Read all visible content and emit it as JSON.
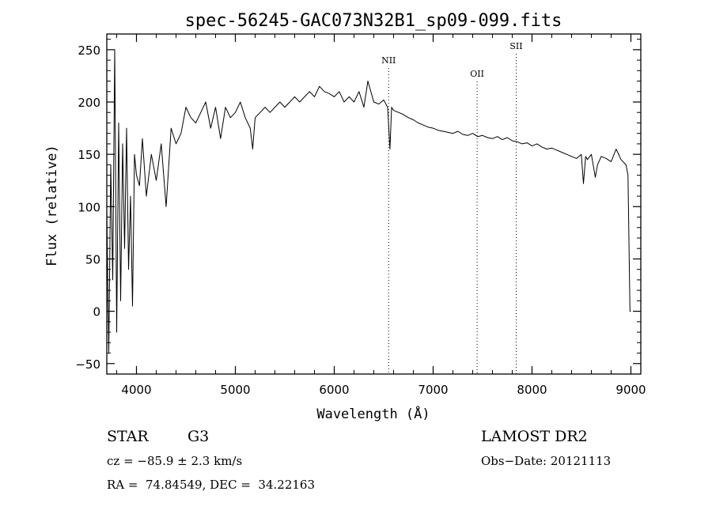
{
  "chart_data": {
    "type": "line",
    "title": "spec-56245-GAC073N32B1_sp09-099.fits",
    "xlabel": "Wavelength (Å)",
    "ylabel": "Flux (relative)",
    "xlim": [
      3700,
      9100
    ],
    "ylim": [
      -60,
      265
    ],
    "x_ticks": [
      4000,
      5000,
      6000,
      7000,
      8000,
      9000
    ],
    "y_ticks": [
      -50,
      0,
      50,
      100,
      150,
      200,
      250
    ],
    "grid": false,
    "lines": [
      {
        "label": "NII",
        "x": 6550
      },
      {
        "label": "OII",
        "x": 7445
      },
      {
        "label": "SII",
        "x": 7840
      }
    ],
    "series": [
      {
        "x": [
          3700,
          3720,
          3740,
          3760,
          3780,
          3800,
          3820,
          3840,
          3860,
          3880,
          3900,
          3920,
          3940,
          3960,
          3980,
          4000,
          4030,
          4060,
          4100,
          4150,
          4200,
          4250,
          4300,
          4350,
          4400,
          4450,
          4500,
          4550,
          4600,
          4650,
          4700,
          4750,
          4800,
          4850,
          4900,
          4950,
          5000,
          5050,
          5100,
          5150,
          5175,
          5200,
          5250,
          5300,
          5350,
          5400,
          5450,
          5500,
          5550,
          5600,
          5650,
          5700,
          5750,
          5800,
          5850,
          5900,
          5950,
          6000,
          6050,
          6100,
          6150,
          6200,
          6250,
          6300,
          6340,
          6400,
          6450,
          6500,
          6540,
          6563,
          6580,
          6600,
          6650,
          6700,
          6750,
          6800,
          6850,
          6900,
          6950,
          7000,
          7050,
          7100,
          7150,
          7200,
          7250,
          7300,
          7350,
          7400,
          7450,
          7500,
          7550,
          7600,
          7650,
          7700,
          7750,
          7800,
          7850,
          7900,
          7950,
          8000,
          8050,
          8100,
          8150,
          8200,
          8250,
          8300,
          8350,
          8400,
          8450,
          8498,
          8520,
          8542,
          8560,
          8600,
          8640,
          8662,
          8700,
          8750,
          8800,
          8850,
          8900,
          8950,
          8970,
          8990,
          9000
        ],
        "y": [
          95,
          -40,
          140,
          30,
          250,
          -20,
          180,
          10,
          160,
          60,
          175,
          40,
          110,
          5,
          150,
          130,
          120,
          165,
          110,
          150,
          125,
          160,
          100,
          175,
          160,
          170,
          195,
          185,
          180,
          190,
          200,
          175,
          195,
          165,
          195,
          185,
          190,
          200,
          185,
          175,
          155,
          185,
          190,
          195,
          190,
          195,
          200,
          195,
          200,
          205,
          200,
          205,
          210,
          205,
          215,
          210,
          208,
          205,
          210,
          200,
          205,
          200,
          210,
          195,
          220,
          200,
          198,
          202,
          195,
          155,
          195,
          192,
          190,
          188,
          185,
          183,
          180,
          178,
          176,
          175,
          173,
          172,
          171,
          170,
          172,
          169,
          168,
          170,
          167,
          168,
          166,
          165,
          167,
          164,
          166,
          163,
          162,
          160,
          161,
          158,
          160,
          157,
          155,
          156,
          154,
          152,
          150,
          148,
          146,
          150,
          122,
          148,
          145,
          150,
          128,
          140,
          148,
          146,
          143,
          155,
          145,
          140,
          130,
          0,
          0
        ]
      }
    ]
  },
  "info": {
    "object_class": "STAR",
    "subclass": "G3",
    "survey": "LAMOST DR2",
    "redshift": "cz = −85.9 ± 2.3 km/s",
    "obs_date": "Obs−Date: 20121113",
    "coords": "RA =  74.84549, DEC =  34.22163"
  }
}
